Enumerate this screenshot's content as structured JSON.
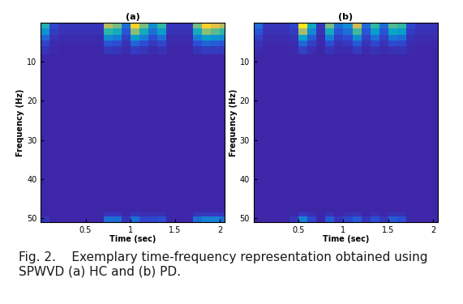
{
  "chart_data": [
    {
      "type": "heatmap",
      "title": "(a)",
      "x_label": "Time (sec)",
      "y_label": "Frequency (Hz)",
      "xlim": [
        0,
        2.05
      ],
      "ylim": [
        51,
        0
      ],
      "xticks": [
        0.5,
        1,
        1.5,
        2
      ],
      "yticks": [
        10,
        20,
        30,
        40,
        50
      ],
      "x_edges": [
        0,
        0.1,
        0.2,
        0.3,
        0.4,
        0.5,
        0.6,
        0.7,
        0.8,
        0.9,
        1.0,
        1.1,
        1.2,
        1.3,
        1.4,
        1.5,
        1.6,
        1.7,
        1.8,
        1.9,
        2.0,
        2.05
      ],
      "y_edges": [
        0,
        1.5,
        3,
        4.5,
        6,
        8,
        48.5,
        49.5,
        51
      ],
      "color_range": [
        0,
        1
      ],
      "cells": [
        [
          0.45,
          0.1,
          0.05,
          0.05,
          0.05,
          0.05,
          0.05,
          0.7,
          0.6,
          0.2,
          0.9,
          0.6,
          0.3,
          0.5,
          0.05,
          0.05,
          0.05,
          0.6,
          0.9,
          0.8,
          0.7
        ],
        [
          0.32,
          0.07,
          0.04,
          0.04,
          0.04,
          0.04,
          0.04,
          0.49,
          0.42,
          0.14,
          0.63,
          0.42,
          0.21,
          0.35,
          0.04,
          0.04,
          0.04,
          0.42,
          0.63,
          0.56,
          0.49
        ],
        [
          0.18,
          0.04,
          0.02,
          0.02,
          0.02,
          0.02,
          0.02,
          0.28,
          0.24,
          0.08,
          0.36,
          0.24,
          0.12,
          0.2,
          0.02,
          0.02,
          0.02,
          0.24,
          0.36,
          0.32,
          0.28
        ],
        [
          0.09,
          0.02,
          0.01,
          0.01,
          0.01,
          0.01,
          0.01,
          0.14,
          0.12,
          0.04,
          0.18,
          0.12,
          0.06,
          0.1,
          0.01,
          0.01,
          0.01,
          0.12,
          0.18,
          0.16,
          0.14
        ],
        [
          0.04,
          0.01,
          0,
          0,
          0,
          0,
          0,
          0.06,
          0.05,
          0.02,
          0.07,
          0.05,
          0.02,
          0.04,
          0,
          0,
          0,
          0.05,
          0.07,
          0.06,
          0.06
        ],
        [
          0,
          0,
          0,
          0,
          0,
          0,
          0,
          0,
          0,
          0,
          0,
          0,
          0,
          0,
          0,
          0,
          0,
          0,
          0,
          0,
          0
        ],
        [
          0,
          0,
          0,
          0,
          0,
          0,
          0,
          0.05,
          0.05,
          0,
          0.05,
          0.03,
          0.03,
          0.03,
          0,
          0,
          0,
          0.05,
          0.06,
          0.06,
          0.05
        ],
        [
          0.05,
          0,
          0,
          0,
          0,
          0,
          0,
          0.2,
          0.2,
          0.05,
          0.2,
          0.1,
          0.1,
          0.12,
          0,
          0,
          0,
          0.2,
          0.25,
          0.25,
          0.2
        ]
      ]
    },
    {
      "type": "heatmap",
      "title": "(b)",
      "x_label": "Time (sec)",
      "y_label": "Frequency (Hz)",
      "xlim": [
        0,
        2.05
      ],
      "ylim": [
        51,
        0
      ],
      "xticks": [
        0.5,
        1,
        1.5,
        2
      ],
      "yticks": [
        10,
        20,
        30,
        40,
        50
      ],
      "x_edges": [
        0,
        0.1,
        0.2,
        0.3,
        0.4,
        0.5,
        0.6,
        0.7,
        0.8,
        0.9,
        1.0,
        1.1,
        1.2,
        1.3,
        1.4,
        1.5,
        1.6,
        1.7,
        1.8,
        1.9,
        2.0,
        2.05
      ],
      "y_edges": [
        0,
        1.5,
        3,
        4.5,
        6,
        8,
        48.5,
        49.5,
        51
      ],
      "color_range": [
        0,
        1
      ],
      "cells": [
        [
          0.2,
          0.05,
          0.05,
          0.05,
          0.1,
          0.95,
          0.4,
          0.05,
          0.6,
          0.2,
          0.3,
          0.75,
          0.2,
          0.5,
          0.2,
          0.55,
          0.5,
          0.1,
          0.05,
          0.05,
          0.05
        ],
        [
          0.14,
          0.04,
          0.04,
          0.04,
          0.07,
          0.67,
          0.28,
          0.04,
          0.42,
          0.14,
          0.21,
          0.53,
          0.14,
          0.35,
          0.14,
          0.39,
          0.35,
          0.07,
          0.04,
          0.04,
          0.04
        ],
        [
          0.08,
          0.02,
          0.02,
          0.02,
          0.04,
          0.38,
          0.16,
          0.02,
          0.24,
          0.08,
          0.12,
          0.3,
          0.08,
          0.2,
          0.08,
          0.22,
          0.2,
          0.04,
          0.02,
          0.02,
          0.02
        ],
        [
          0.04,
          0.01,
          0.01,
          0.01,
          0.02,
          0.19,
          0.08,
          0.01,
          0.12,
          0.04,
          0.06,
          0.15,
          0.04,
          0.1,
          0.04,
          0.11,
          0.1,
          0.02,
          0.01,
          0.01,
          0.01
        ],
        [
          0.02,
          0,
          0,
          0,
          0.01,
          0.08,
          0.03,
          0,
          0.05,
          0.02,
          0.02,
          0.06,
          0.02,
          0.04,
          0.02,
          0.04,
          0.04,
          0.01,
          0,
          0,
          0
        ],
        [
          0,
          0,
          0,
          0,
          0,
          0,
          0,
          0,
          0,
          0,
          0,
          0,
          0,
          0,
          0,
          0,
          0,
          0,
          0,
          0,
          0
        ],
        [
          0,
          0,
          0,
          0,
          0,
          0.06,
          0.03,
          0,
          0.04,
          0,
          0.03,
          0.04,
          0,
          0.03,
          0,
          0.04,
          0.03,
          0,
          0,
          0,
          0
        ],
        [
          0,
          0,
          0,
          0,
          0.05,
          0.25,
          0.1,
          0,
          0.15,
          0.05,
          0.1,
          0.15,
          0.05,
          0.12,
          0.05,
          0.15,
          0.12,
          0,
          0,
          0,
          0
        ]
      ]
    }
  ],
  "caption": "Fig. 2.    Exemplary time-frequency representation obtained using SPWVD (a) HC and (b) PD."
}
